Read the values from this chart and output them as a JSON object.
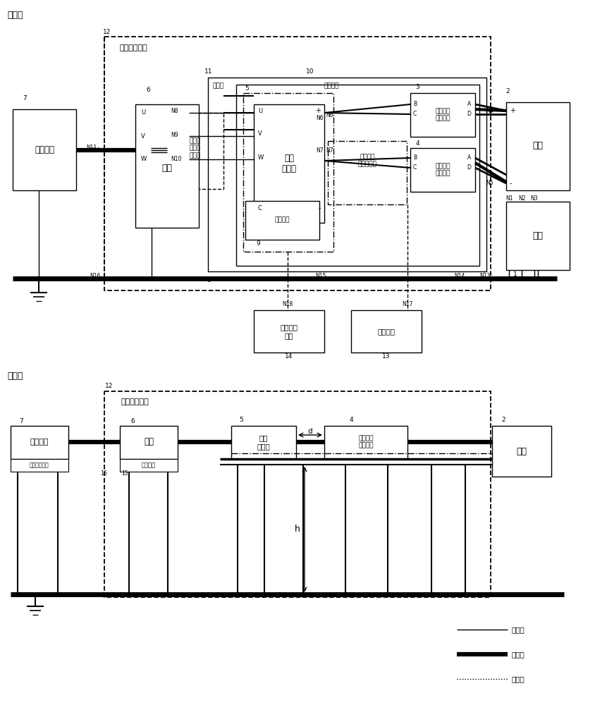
{
  "bg": "#ffffff",
  "top_title": "俯视图",
  "bot_title": "侧视图",
  "shield": "屏蔽室或暗室",
  "legend": [
    "连接线",
    "动力线",
    "信号线"
  ]
}
